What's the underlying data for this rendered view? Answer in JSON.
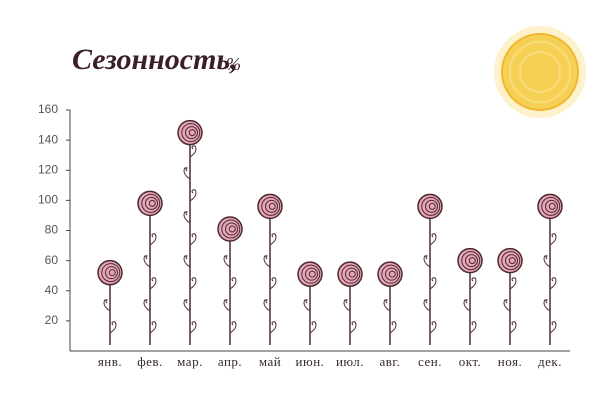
{
  "chart_data": {
    "type": "flower",
    "title": "Сезонность,",
    "unit": "%",
    "categories": [
      "янв.",
      "фев.",
      "мар.",
      "апр.",
      "май",
      "июн.",
      "июл.",
      "авг.",
      "сен.",
      "окт.",
      "ноя.",
      "дек."
    ],
    "values": [
      52,
      98,
      145,
      81,
      96,
      51,
      51,
      51,
      96,
      60,
      60,
      96
    ],
    "color": "#e7a6b6",
    "ylim": [
      0,
      160
    ],
    "yticks": [
      20,
      40,
      60,
      80,
      100,
      120,
      140,
      160
    ]
  }
}
